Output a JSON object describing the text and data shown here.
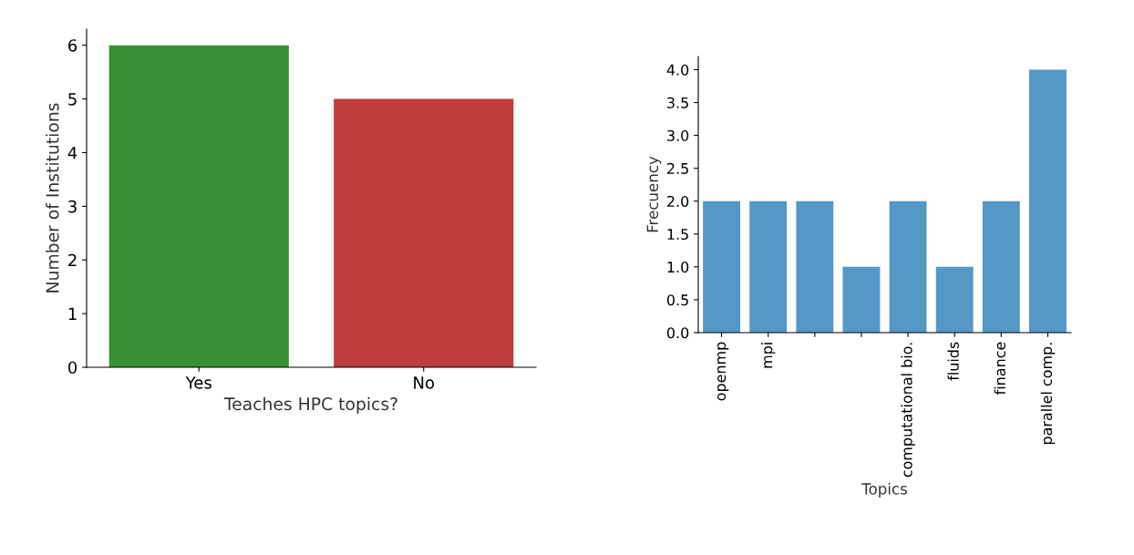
{
  "chart_data": [
    {
      "type": "bar",
      "xlabel": "Teaches HPC topics?",
      "ylabel": "Number of Institutions",
      "categories": [
        "Yes",
        "No"
      ],
      "values": [
        6,
        5
      ],
      "colors": [
        "#388e36",
        "#bd3d3d"
      ],
      "ylim": [
        0,
        6.3
      ],
      "yticks": [
        0,
        1,
        2,
        3,
        4,
        5,
        6
      ],
      "grid": false
    },
    {
      "type": "bar",
      "xlabel": "Topics",
      "ylabel": "Frecuency",
      "categories": [
        "openmp",
        "mpi",
        null,
        null,
        "computational bio.",
        "fluids",
        "finance",
        "parallel comp."
      ],
      "values": [
        2,
        2,
        2,
        1,
        2,
        1,
        2,
        4
      ],
      "color": "#5598c5",
      "ylim": [
        0,
        4.2
      ],
      "yticks": [
        {
          "value": 0,
          "label": "0.0"
        },
        {
          "value": 0.5,
          "label": "0.5"
        },
        {
          "value": 1,
          "label": "1.0"
        },
        {
          "value": 1.5,
          "label": "1.5"
        },
        {
          "value": 2,
          "label": "2.0"
        },
        {
          "value": 2.5,
          "label": "2.5"
        },
        {
          "value": 3,
          "label": "3.0"
        },
        {
          "value": 3.5,
          "label": "3.5"
        },
        {
          "value": 4,
          "label": "4.0"
        }
      ],
      "grid": false
    }
  ]
}
